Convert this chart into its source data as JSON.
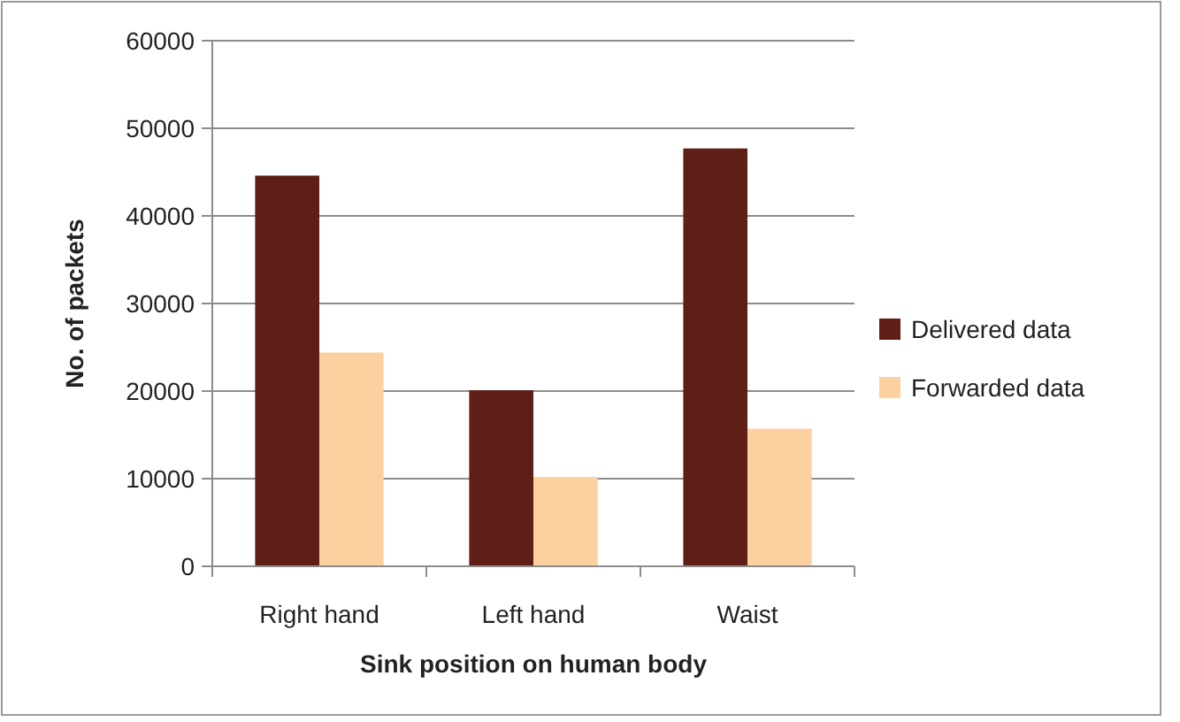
{
  "chart_data": {
    "type": "bar",
    "xlabel": "Sink position on human body",
    "ylabel": "No. of packets",
    "categories": [
      "Right hand",
      "Left hand",
      "Waist"
    ],
    "series": [
      {
        "name": "Delivered data",
        "color": "#5f1f17",
        "values": [
          44600,
          20100,
          47700
        ]
      },
      {
        "name": "Forwarded data",
        "color": "#fdd19f",
        "values": [
          24400,
          10200,
          15700
        ]
      }
    ],
    "ylim": [
      0,
      60000
    ],
    "yticks": [
      0,
      10000,
      20000,
      30000,
      40000,
      50000,
      60000
    ],
    "grid": "y",
    "legend": "right"
  }
}
